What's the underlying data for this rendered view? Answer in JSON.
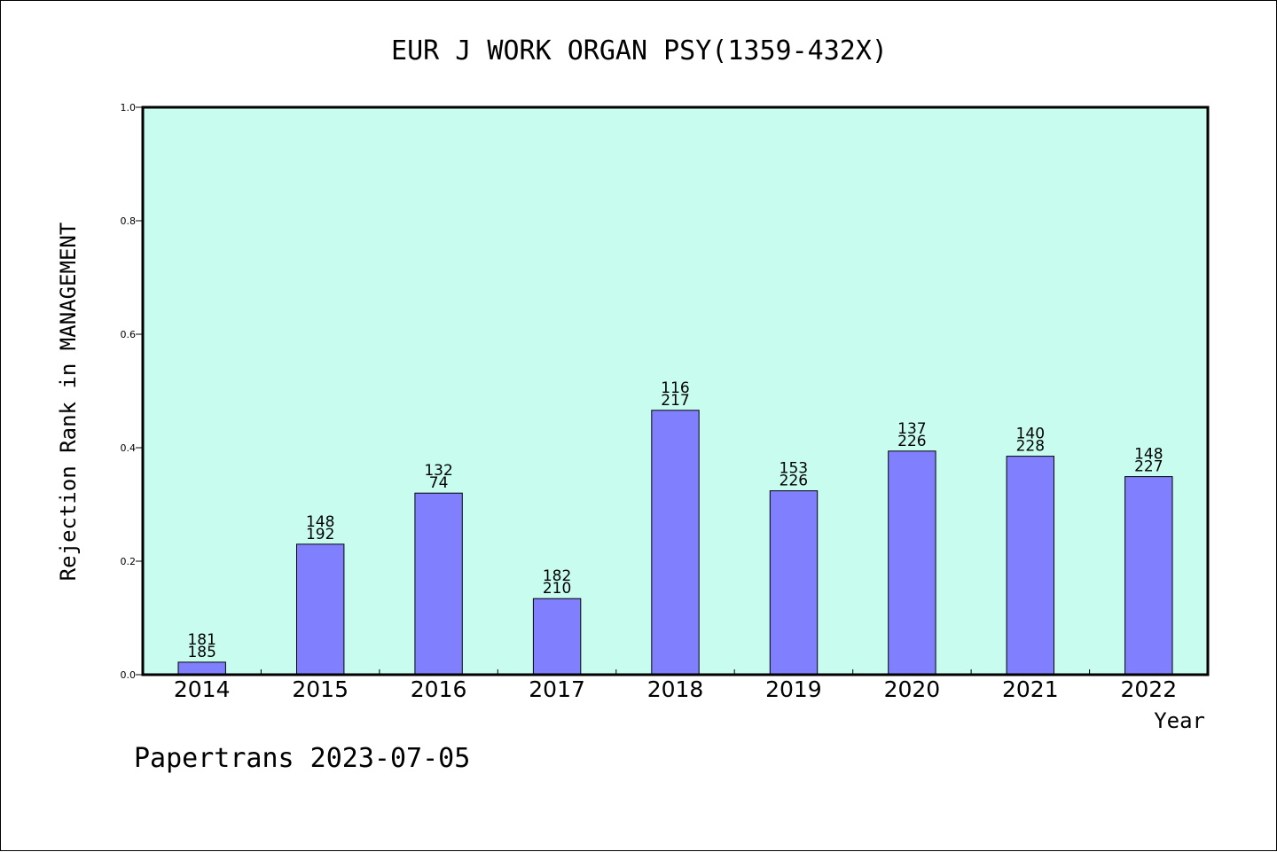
{
  "chart_data": {
    "type": "bar",
    "title": "EUR J WORK ORGAN PSY(1359-432X)",
    "xlabel": "Year",
    "ylabel": "Rejection Rank in MANAGEMENT",
    "ylim": [
      0,
      1.0
    ],
    "yticks": [
      "0.0",
      "0.2",
      "0.4",
      "0.6",
      "0.8",
      "1.0"
    ],
    "categories": [
      "2014",
      "2015",
      "2016",
      "2017",
      "2018",
      "2019",
      "2020",
      "2021",
      "2022"
    ],
    "values": [
      0.022,
      0.23,
      0.32,
      0.134,
      0.466,
      0.324,
      0.394,
      0.385,
      0.349
    ],
    "label_top": [
      "181",
      "148",
      "132",
      "182",
      "116",
      "153",
      "137",
      "140",
      "148"
    ],
    "label_bottom": [
      "185",
      "192",
      "74",
      "210",
      "217",
      "226",
      "226",
      "228",
      "227"
    ],
    "grid": false,
    "legend": "none",
    "colors": {
      "plot_background": "#c8fcee",
      "bar_fill": "#8080ff",
      "bar_stroke": "#000000"
    }
  },
  "footer": {
    "credit": "Papertrans 2023-07-05"
  }
}
